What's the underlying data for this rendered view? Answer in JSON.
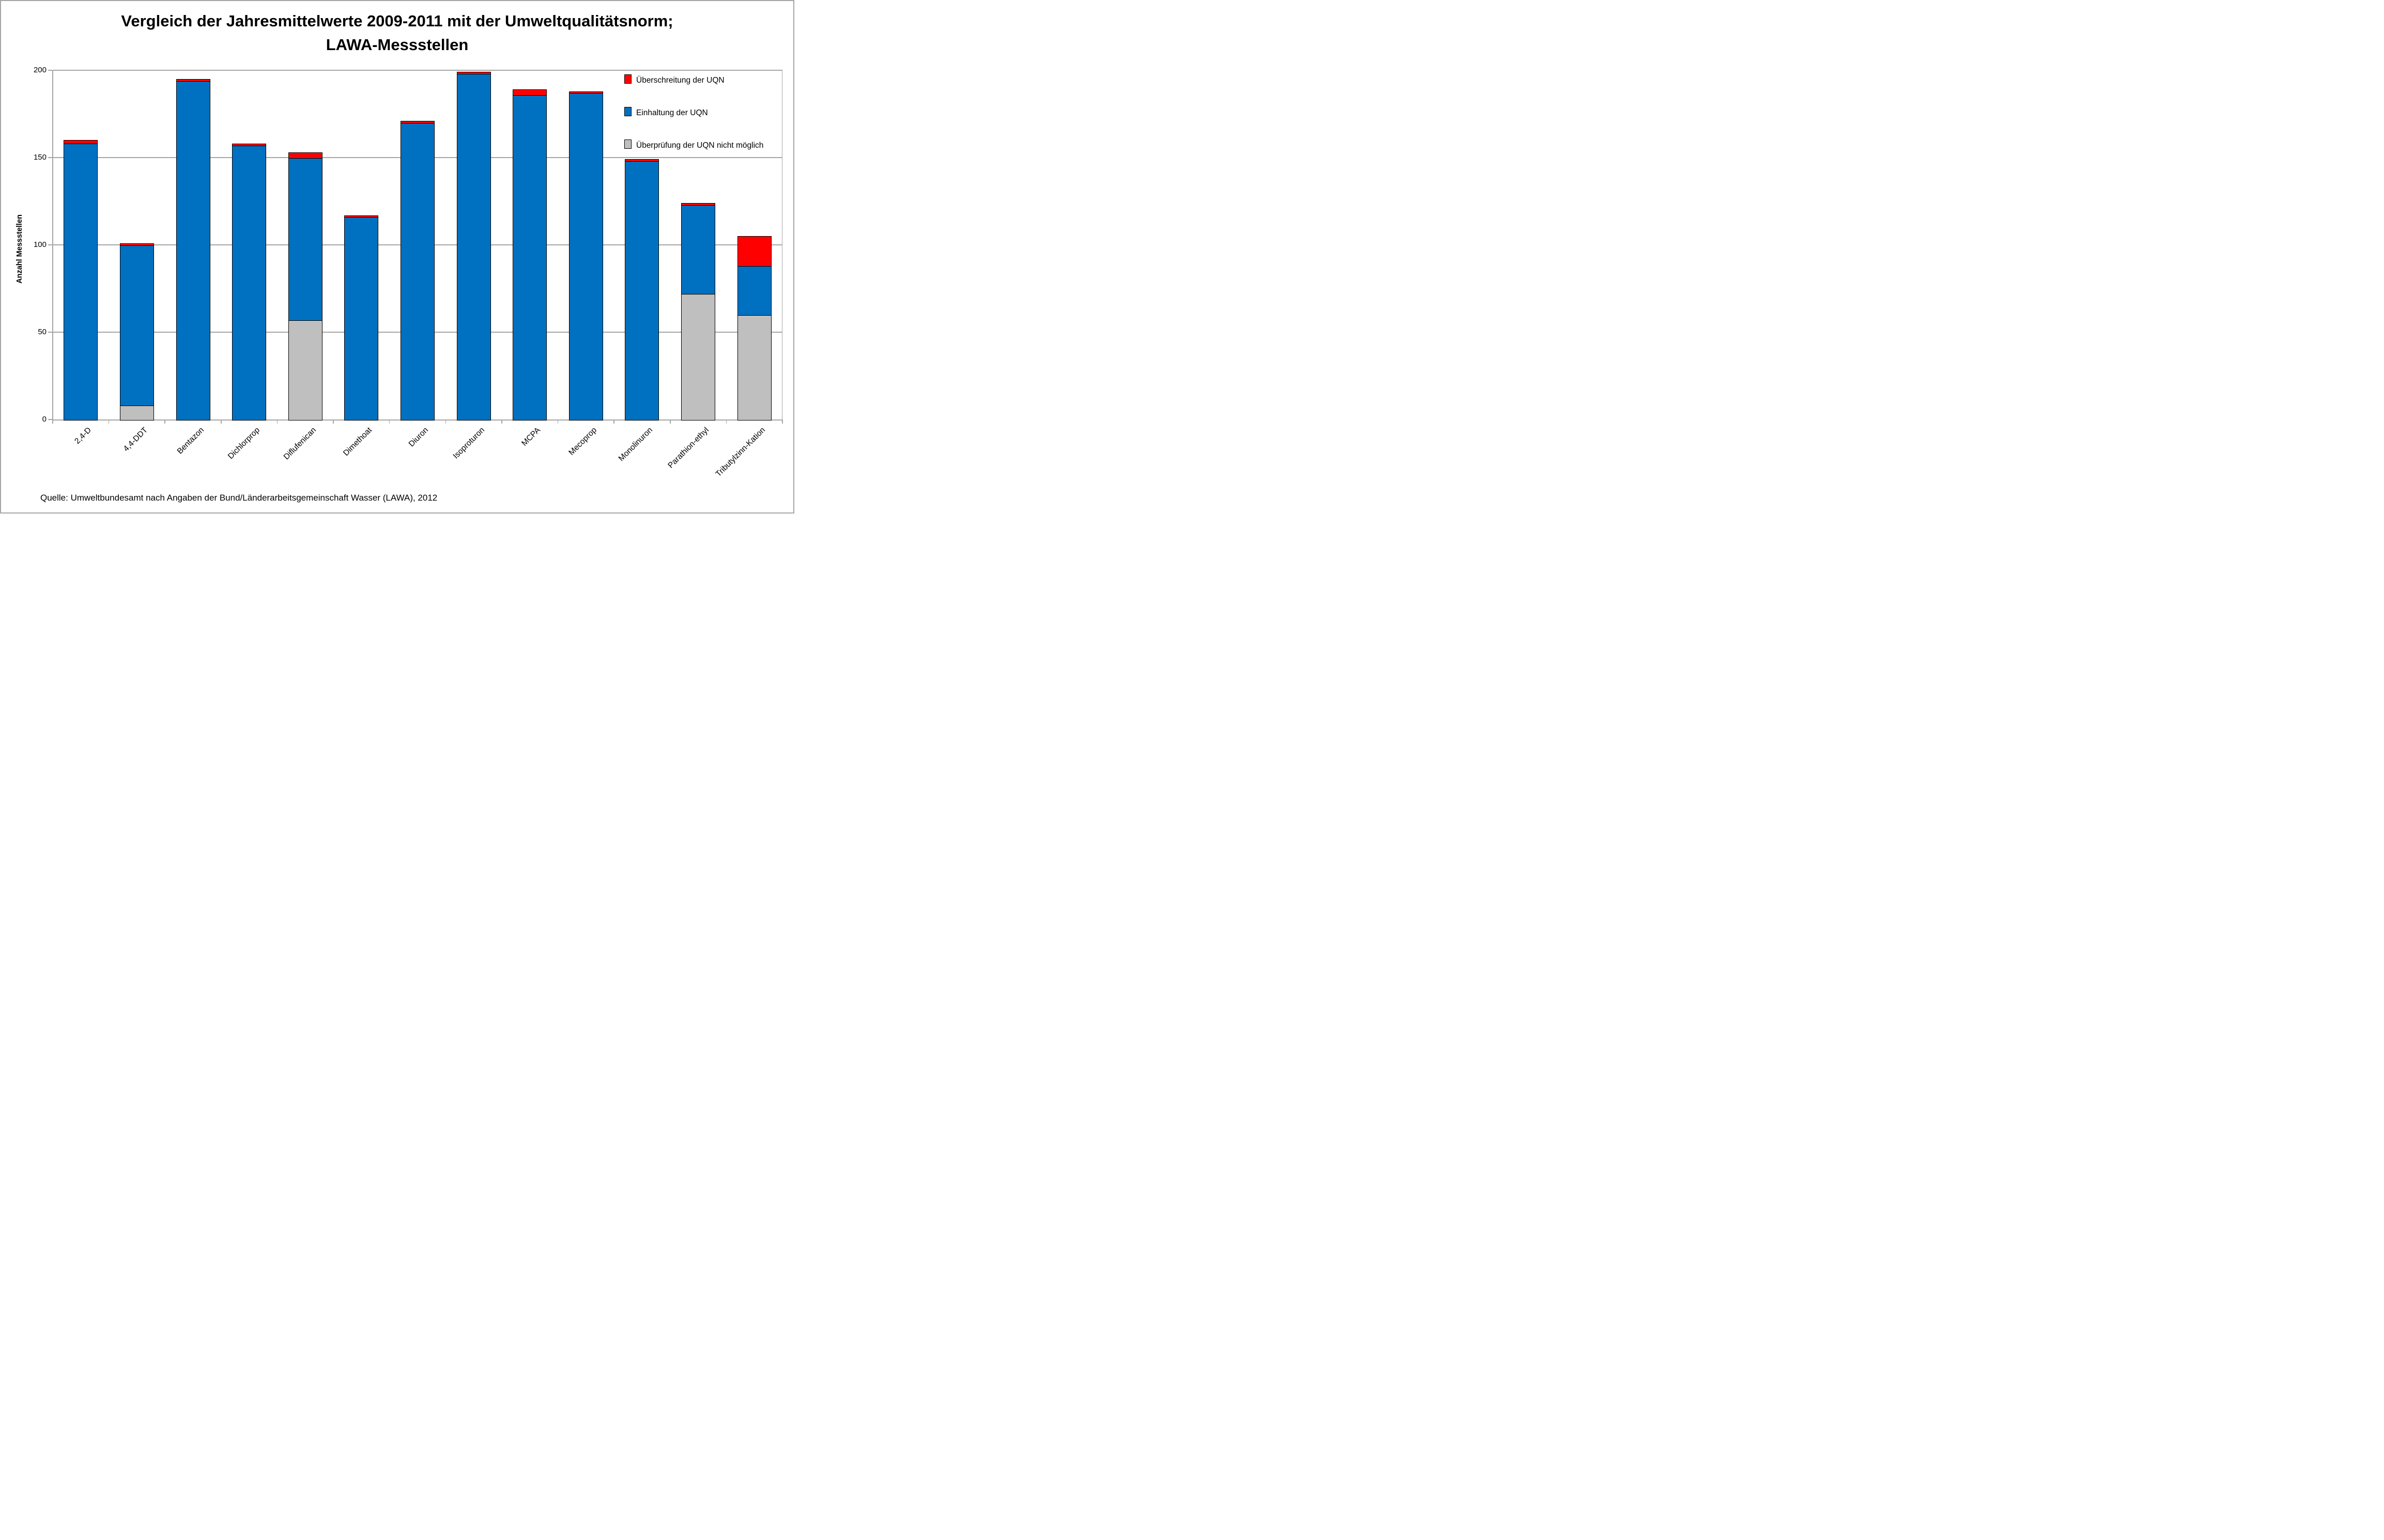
{
  "title": {
    "line1": "Vergleich der Jahresmittelwerte 2009-2011 mit der Umweltqualitätsnorm;",
    "line2": "LAWA-Messstellen"
  },
  "source": "Quelle: Umweltbundesamt nach Angaben der Bund/Länderarbeitsgemeinschaft Wasser (LAWA), 2012",
  "legend": [
    {
      "label": "Überschreitung der UQN",
      "color": "#FF0000"
    },
    {
      "label": "Einhaltung der UQN",
      "color": "#0070C0"
    },
    {
      "label": "Überprüfung der UQN nicht möglich",
      "color": "#BFBFBF"
    }
  ],
  "colors": {
    "exceed": "#FF0000",
    "comply": "#0070C0",
    "not_verifiable": "#BFBFBF",
    "gridline": "#A6A6A6",
    "bar_border": "#000000"
  },
  "chart_data": {
    "type": "bar",
    "stacked": true,
    "title": "Vergleich der Jahresmittelwerte 2009-2011 mit der Umweltqualitätsnorm; LAWA-Messstellen",
    "xlabel": "",
    "ylabel": "Anzahl Messstellen",
    "ylim": [
      0,
      200
    ],
    "yticks": [
      0,
      50,
      100,
      150,
      200
    ],
    "grid": true,
    "legend_position": "inside-top-right",
    "categories": [
      "2,4-D",
      "4,4-DDT",
      "Bentazon",
      "Dichlorprop",
      "Diflufenican",
      "Dimethoat",
      "Diuron",
      "Isoproturon",
      "MCPA",
      "Mecoprop",
      "Monolinuron",
      "Parathion-ethyl",
      "Tributylzinn-Kation"
    ],
    "series": [
      {
        "name": "Überprüfung der UQN nicht möglich",
        "color": "#BFBFBF",
        "values": [
          0,
          8,
          0,
          0,
          57,
          0,
          0,
          0,
          0,
          0,
          0,
          72,
          60
        ]
      },
      {
        "name": "Einhaltung der UQN",
        "color": "#0070C0",
        "values": [
          158,
          92,
          194,
          157,
          93,
          116,
          170,
          198,
          186,
          187,
          148,
          51,
          28
        ]
      },
      {
        "name": "Überschreitung der UQN",
        "color": "#FF0000",
        "values": [
          2,
          1,
          1,
          1,
          3,
          1,
          1,
          1,
          3,
          1,
          1,
          1,
          17
        ]
      }
    ],
    "totals": [
      160,
      101,
      195,
      158,
      153,
      117,
      171,
      199,
      189,
      188,
      149,
      124,
      105
    ]
  }
}
